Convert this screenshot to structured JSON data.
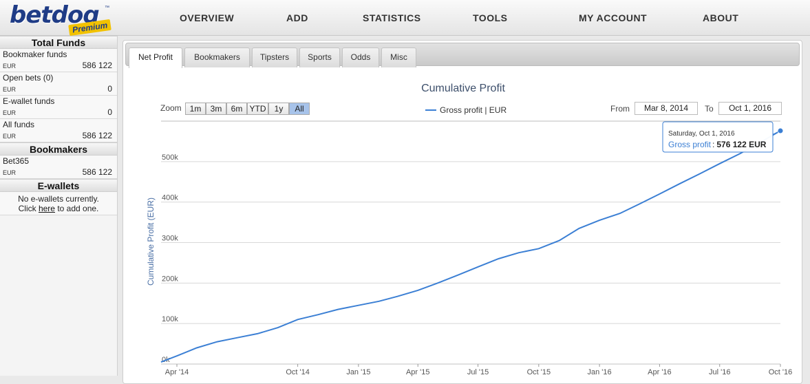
{
  "logo": {
    "text": "betdoq",
    "tm": "™",
    "badge": "Premium"
  },
  "nav": [
    "OVERVIEW",
    "ADD",
    "STATISTICS",
    "TOOLS",
    "MY ACCOUNT",
    "ABOUT"
  ],
  "sidebar": {
    "total_funds": {
      "title": "Total Funds",
      "rows": [
        {
          "label": "Bookmaker funds",
          "currency": "EUR",
          "value": "586 122"
        },
        {
          "label": "Open bets (0)",
          "currency": "EUR",
          "value": "0"
        },
        {
          "label": "E-wallet funds",
          "currency": "EUR",
          "value": "0"
        },
        {
          "label": "All funds",
          "currency": "EUR",
          "value": "586 122"
        }
      ]
    },
    "bookmakers": {
      "title": "Bookmakers",
      "rows": [
        {
          "label": "Bet365",
          "currency": "EUR",
          "value": "586 122"
        }
      ]
    },
    "ewallets": {
      "title": "E-wallets",
      "note_line1": "No e-wallets currently.",
      "note_pre": "Click ",
      "note_link": "here",
      "note_post": " to add one."
    }
  },
  "tabs": [
    "Net Profit",
    "Bookmakers",
    "Tipsters",
    "Sports",
    "Odds",
    "Misc"
  ],
  "active_tab": 0,
  "zoom": {
    "label": "Zoom",
    "buttons": [
      "1m",
      "3m",
      "6m",
      "YTD",
      "1y",
      "All"
    ],
    "selected": "All"
  },
  "range": {
    "from_label": "From",
    "from": "Mar 8, 2014",
    "to_label": "To",
    "to": "Oct 1, 2016"
  },
  "tooltip": {
    "date": "Saturday, Oct 1, 2016",
    "series": "Gross profit",
    "value": "576 122 EUR"
  },
  "colors": {
    "series": "#3b7fd4",
    "axis_title": "#4a6fa5",
    "title": "#3d4f6b",
    "brand": "#1f3c86",
    "badge": "#f2c200"
  },
  "chart_data": {
    "type": "line",
    "title": "Cumulative Profit",
    "ylabel": "Cumulative Profit (EUR)",
    "xlabel": "",
    "ylim": [
      0,
      600000
    ],
    "y_ticks": [
      0,
      100000,
      200000,
      300000,
      400000,
      500000
    ],
    "y_tick_labels": [
      "0k",
      "100k",
      "200k",
      "300k",
      "400k",
      "500k"
    ],
    "x_ticks": [
      "2014-04-01",
      "2014-10-01",
      "2015-01-01",
      "2015-04-01",
      "2015-07-01",
      "2015-10-01",
      "2016-01-01",
      "2016-04-01",
      "2016-07-01",
      "2016-10-01"
    ],
    "x_tick_labels": [
      "Apr '14",
      "Oct '14",
      "Jan '15",
      "Apr '15",
      "Jul '15",
      "Oct '15",
      "Jan '16",
      "Apr '16",
      "Jul '16",
      "Oct '16"
    ],
    "xlim": [
      "2014-03-08",
      "2016-10-01"
    ],
    "grid": true,
    "legend": "top-center",
    "series": [
      {
        "name": "Gross profit | EUR",
        "points": [
          [
            "2014-03-08",
            5000
          ],
          [
            "2014-04-01",
            20000
          ],
          [
            "2014-05-01",
            40000
          ],
          [
            "2014-06-01",
            55000
          ],
          [
            "2014-07-01",
            65000
          ],
          [
            "2014-08-01",
            75000
          ],
          [
            "2014-09-01",
            90000
          ],
          [
            "2014-10-01",
            110000
          ],
          [
            "2014-11-01",
            122000
          ],
          [
            "2014-12-01",
            135000
          ],
          [
            "2015-01-01",
            145000
          ],
          [
            "2015-02-01",
            155000
          ],
          [
            "2015-03-01",
            167000
          ],
          [
            "2015-04-01",
            182000
          ],
          [
            "2015-05-01",
            200000
          ],
          [
            "2015-06-01",
            220000
          ],
          [
            "2015-07-01",
            240000
          ],
          [
            "2015-08-01",
            260000
          ],
          [
            "2015-09-01",
            275000
          ],
          [
            "2015-10-01",
            285000
          ],
          [
            "2015-11-01",
            305000
          ],
          [
            "2015-12-01",
            335000
          ],
          [
            "2016-01-01",
            355000
          ],
          [
            "2016-02-01",
            372000
          ],
          [
            "2016-03-01",
            395000
          ],
          [
            "2016-04-01",
            420000
          ],
          [
            "2016-05-01",
            445000
          ],
          [
            "2016-06-01",
            470000
          ],
          [
            "2016-07-01",
            495000
          ],
          [
            "2016-08-01",
            520000
          ],
          [
            "2016-09-01",
            548000
          ],
          [
            "2016-10-01",
            576122
          ]
        ]
      }
    ]
  }
}
